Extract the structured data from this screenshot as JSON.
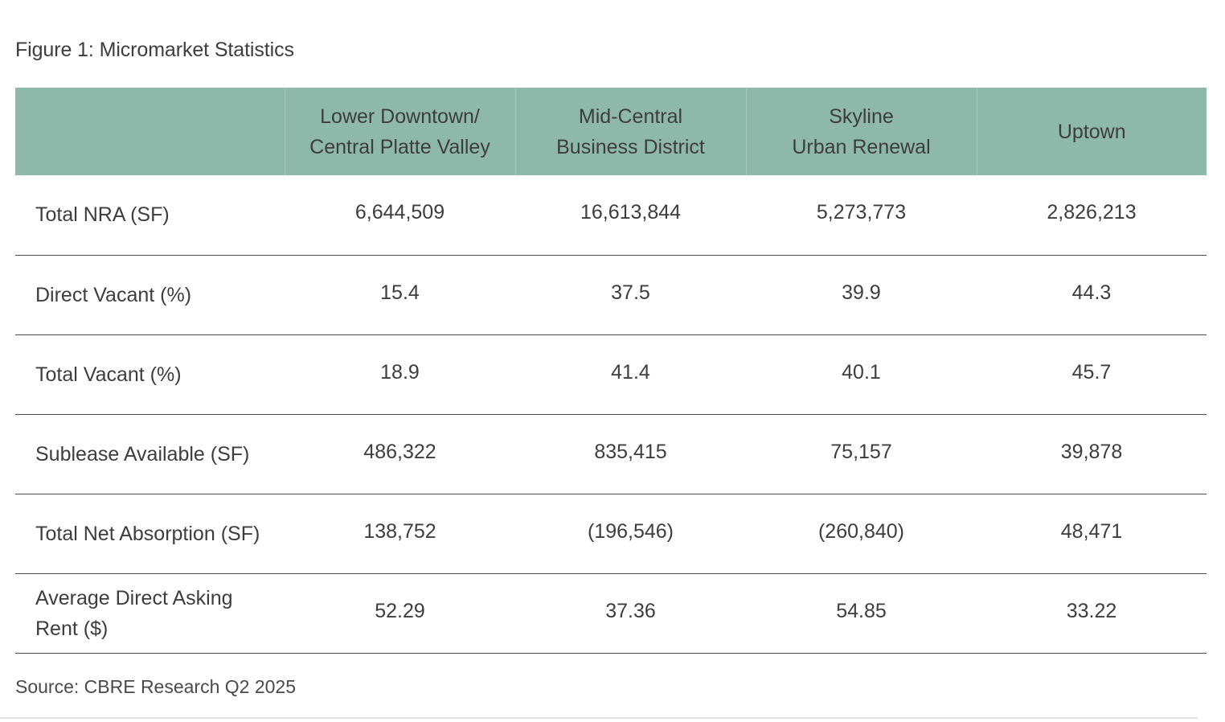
{
  "figure": {
    "title": "Figure 1: Micromarket Statistics"
  },
  "table": {
    "headers": [
      "",
      [
        "Lower Downtown/",
        "Central Platte Valley"
      ],
      [
        "Mid-Central",
        "Business District"
      ],
      [
        "Skyline",
        "Urban Renewal"
      ],
      [
        "Uptown"
      ]
    ],
    "rows": [
      {
        "label": "Total NRA (SF)",
        "values": [
          "6,644,509",
          "16,613,844",
          "5,273,773",
          "2,826,213"
        ]
      },
      {
        "label": "Direct Vacant (%)",
        "values": [
          "15.4",
          "37.5",
          "39.9",
          "44.3"
        ]
      },
      {
        "label": "Total Vacant (%)",
        "values": [
          "18.9",
          "41.4",
          "40.1",
          "45.7"
        ]
      },
      {
        "label": "Sublease Available (SF)",
        "values": [
          "486,322",
          "835,415",
          "75,157",
          "39,878"
        ]
      },
      {
        "label": "Total Net Absorption (SF)",
        "values": [
          "138,752",
          "(196,546)",
          "(260,840)",
          "48,471"
        ]
      },
      {
        "label": "Average Direct Asking Rent ($)",
        "values": [
          "52.29",
          "37.36",
          "54.85",
          "33.22"
        ]
      }
    ]
  },
  "source": "Source: CBRE Research Q2 2025",
  "colors": {
    "header_bg": "#8db8aa",
    "rule": "#4a4a4a"
  }
}
